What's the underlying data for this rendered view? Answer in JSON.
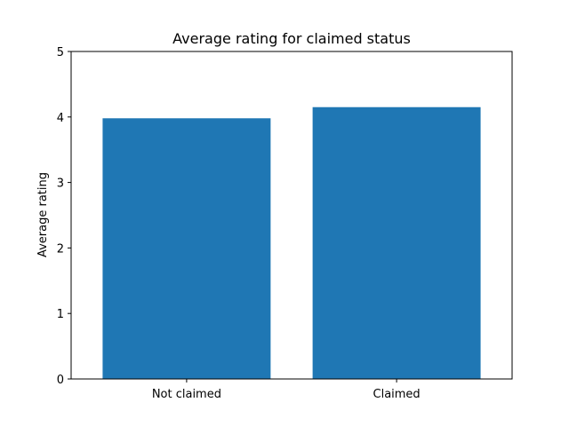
{
  "chart_data": {
    "type": "bar",
    "title": "Average rating for claimed status",
    "xlabel": "",
    "ylabel": "Average rating",
    "categories": [
      "Not claimed",
      "Claimed"
    ],
    "values": [
      3.98,
      4.15
    ],
    "ylim": [
      0,
      5
    ],
    "yticks": [
      "0",
      "1",
      "2",
      "3",
      "4",
      "5"
    ],
    "bar_color": "#1f77b4",
    "grid": false,
    "legend": "none"
  }
}
